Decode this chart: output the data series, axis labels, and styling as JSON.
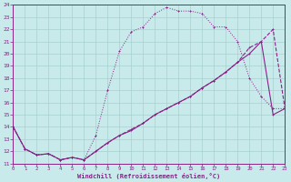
{
  "xlabel": "Windchill (Refroidissement éolien,°C)",
  "bg_color": "#c8eaea",
  "grid_color": "#a8d0d0",
  "line_color": "#882288",
  "xlim": [
    0,
    23
  ],
  "ylim": [
    11,
    24
  ],
  "xticks": [
    0,
    1,
    2,
    3,
    4,
    5,
    6,
    7,
    8,
    9,
    10,
    11,
    12,
    13,
    14,
    15,
    16,
    17,
    18,
    19,
    20,
    21,
    22,
    23
  ],
  "yticks": [
    11,
    12,
    13,
    14,
    15,
    16,
    17,
    18,
    19,
    20,
    21,
    22,
    23,
    24
  ],
  "line1_x": [
    0,
    1,
    2,
    3,
    4,
    5,
    6,
    7,
    8,
    9,
    10,
    11,
    12,
    13,
    14,
    15,
    16,
    17,
    18,
    19,
    20,
    21,
    22,
    23
  ],
  "line1_y": [
    14.0,
    12.2,
    11.7,
    11.8,
    11.3,
    11.5,
    11.3,
    13.3,
    17.0,
    20.2,
    21.8,
    22.2,
    23.3,
    23.8,
    23.5,
    23.5,
    23.3,
    22.2,
    22.2,
    21.0,
    18.0,
    16.5,
    15.5,
    15.5
  ],
  "line2_x": [
    0,
    1,
    2,
    3,
    4,
    5,
    6,
    7,
    8,
    9,
    10,
    11,
    12,
    13,
    14,
    15,
    16,
    17,
    18,
    19,
    20,
    21,
    22,
    23
  ],
  "line2_y": [
    14.0,
    12.2,
    11.7,
    11.8,
    11.3,
    11.5,
    11.3,
    12.0,
    12.7,
    13.3,
    13.7,
    14.3,
    15.0,
    15.5,
    16.0,
    16.5,
    17.2,
    17.8,
    18.5,
    19.3,
    20.0,
    21.0,
    15.0,
    15.5
  ],
  "line3_x": [
    0,
    1,
    2,
    3,
    4,
    5,
    6,
    7,
    8,
    9,
    10,
    11,
    12,
    13,
    14,
    15,
    16,
    17,
    18,
    19,
    20,
    21,
    22,
    23
  ],
  "line3_y": [
    14.0,
    12.2,
    11.7,
    11.8,
    11.3,
    11.5,
    11.3,
    12.0,
    12.7,
    13.3,
    13.8,
    14.3,
    15.0,
    15.5,
    16.0,
    16.5,
    17.2,
    17.8,
    18.5,
    19.3,
    20.5,
    21.0,
    22.0,
    15.5
  ]
}
